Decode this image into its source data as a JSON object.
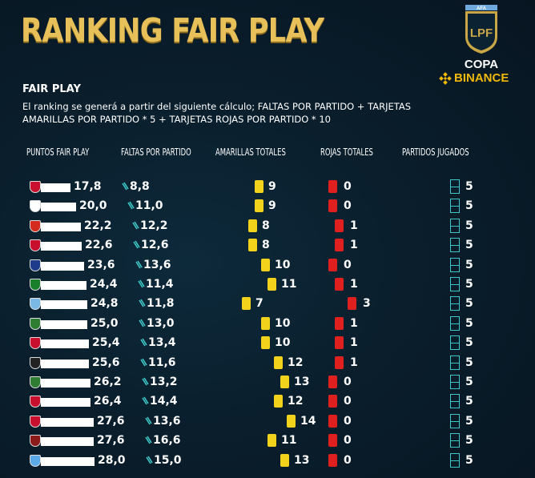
{
  "title": "RANKING FAIR PLAY",
  "logo": {
    "top_text": "AFA",
    "shield_text": "LPF",
    "copa": "COPA",
    "binance": "BINANCE"
  },
  "subtitle": "FAIR PLAY",
  "description": "El ranking se generá a partir del siguiente cálculo; FALTAS POR PARTIDO + TARJETAS AMARILLAS POR PARTIDO * 5 + TARJETAS ROJAS POR PARTIDO * 10",
  "headers": {
    "puntos": "PUNTOS FAIR PLAY",
    "faltas": "FALTAS POR PARTIDO",
    "amarillas": "AMARILLAS TOTALES",
    "rojas": "ROJAS TOTALES",
    "partidos": "PARTIDOS JUGADOS"
  },
  "colors": {
    "gold": "#e8c05a",
    "bar": "#ffffff",
    "teal": "#3fc8c8",
    "yellow_card": "#f2d21b",
    "red_card": "#e01f1f"
  },
  "rows": [
    {
      "crest": "#c8102e",
      "pts": "17,8",
      "faltas": "8,8",
      "amarillas": "9",
      "rojas": "0",
      "partidos": "5"
    },
    {
      "crest": "#ffffff",
      "pts": "20,0",
      "faltas": "11,0",
      "amarillas": "9",
      "rojas": "0",
      "partidos": "5"
    },
    {
      "crest": "#d52b1e",
      "pts": "22,2",
      "faltas": "12,2",
      "amarillas": "8",
      "rojas": "1",
      "partidos": "5"
    },
    {
      "crest": "#c8102e",
      "pts": "22,6",
      "faltas": "12,6",
      "amarillas": "8",
      "rojas": "1",
      "partidos": "5"
    },
    {
      "crest": "#1e3a8a",
      "pts": "23,6",
      "faltas": "13,6",
      "amarillas": "10",
      "rojas": "0",
      "partidos": "5"
    },
    {
      "crest": "#1a7f2a",
      "pts": "24,4",
      "faltas": "11,4",
      "amarillas": "11",
      "rojas": "1",
      "partidos": "5"
    },
    {
      "crest": "#7ab8e6",
      "pts": "24,8",
      "faltas": "11,8",
      "amarillas": "7",
      "rojas": "3",
      "partidos": "5"
    },
    {
      "crest": "#2e7d32",
      "pts": "25,0",
      "faltas": "13,0",
      "amarillas": "10",
      "rojas": "1",
      "partidos": "5"
    },
    {
      "crest": "#c8102e",
      "pts": "25,4",
      "faltas": "13,4",
      "amarillas": "10",
      "rojas": "1",
      "partidos": "5"
    },
    {
      "crest": "#222222",
      "pts": "25,6",
      "faltas": "11,6",
      "amarillas": "12",
      "rojas": "1",
      "partidos": "5"
    },
    {
      "crest": "#2e7d32",
      "pts": "26,2",
      "faltas": "13,2",
      "amarillas": "13",
      "rojas": "0",
      "partidos": "5"
    },
    {
      "crest": "#c8102e",
      "pts": "26,4",
      "faltas": "14,4",
      "amarillas": "12",
      "rojas": "0",
      "partidos": "5"
    },
    {
      "crest": "#c8102e",
      "pts": "27,6",
      "faltas": "13,6",
      "amarillas": "14",
      "rojas": "0",
      "partidos": "5"
    },
    {
      "crest": "#8b1a1a",
      "pts": "27,6",
      "faltas": "16,6",
      "amarillas": "11",
      "rojas": "0",
      "partidos": "5"
    },
    {
      "crest": "#5aa9e6",
      "pts": "28,0",
      "faltas": "15,0",
      "amarillas": "13",
      "rojas": "0",
      "partidos": "5"
    }
  ]
}
